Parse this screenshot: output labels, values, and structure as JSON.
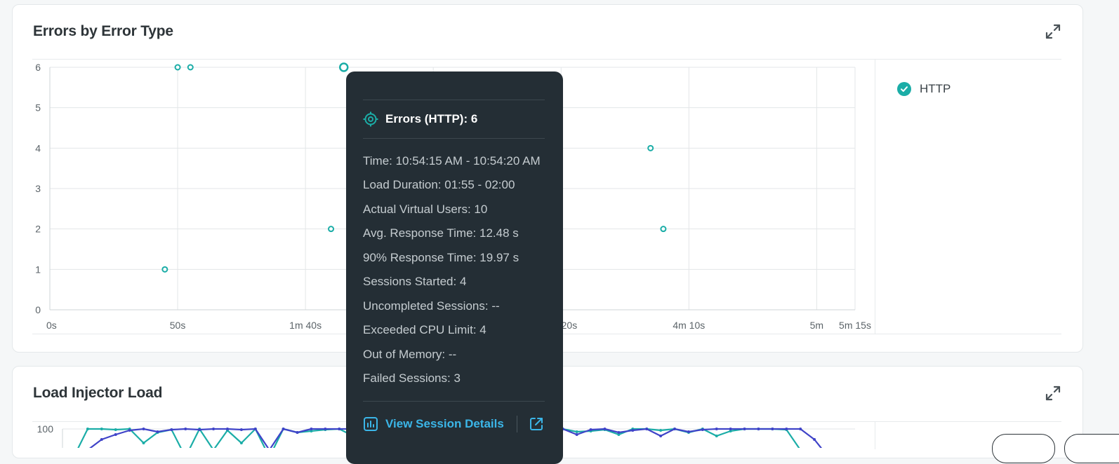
{
  "cards": {
    "errors": {
      "title": "Errors by Error Type"
    },
    "load": {
      "title": "Load Injector Load"
    }
  },
  "legend": {
    "label": "HTTP",
    "color": "#1bada7",
    "checked": true
  },
  "chart_data": [
    {
      "type": "scatter",
      "title": "Errors by Error Type",
      "xlabel": "",
      "ylabel": "",
      "x_unit": "seconds",
      "x_ticks": [
        {
          "value": 0,
          "label": "0s"
        },
        {
          "value": 50,
          "label": "50s"
        },
        {
          "value": 100,
          "label": "1m 40s"
        },
        {
          "value": 150,
          "label": ""
        },
        {
          "value": 200,
          "label": "3m 20s"
        },
        {
          "value": 250,
          "label": "4m 10s"
        },
        {
          "value": 300,
          "label": "5m"
        },
        {
          "value": 315,
          "label": "5m 15s"
        }
      ],
      "y_ticks": [
        0,
        1,
        2,
        3,
        4,
        5,
        6
      ],
      "xlim": [
        0,
        315
      ],
      "ylim": [
        0,
        6
      ],
      "grid": true,
      "legend_position": "right",
      "series": [
        {
          "name": "HTTP",
          "color": "#1bada7",
          "points": [
            {
              "x": 45,
              "y": 1
            },
            {
              "x": 50,
              "y": 6
            },
            {
              "x": 55,
              "y": 6
            },
            {
              "x": 110,
              "y": 2
            },
            {
              "x": 115,
              "y": 6,
              "highlighted": true
            },
            {
              "x": 235,
              "y": 4
            },
            {
              "x": 240,
              "y": 2
            }
          ]
        }
      ]
    },
    {
      "type": "line",
      "title": "Load Injector Load",
      "y_ticks": [
        100
      ],
      "ylim": [
        0,
        100
      ],
      "note_visible_portion_only": true,
      "series": [
        {
          "color": "#1bada7",
          "values": [
            60,
            100,
            100,
            99,
            100,
            80,
            95,
            99,
            60,
            100,
            70,
            98,
            80,
            100,
            60,
            100,
            95,
            97,
            99,
            100,
            90,
            99,
            100,
            98,
            99,
            100,
            100,
            97,
            60,
            96,
            100,
            100,
            99,
            85,
            98,
            100,
            96,
            97,
            99,
            92,
            100,
            100,
            98,
            100,
            95,
            100,
            90,
            97,
            100,
            100,
            100,
            99,
            70,
            50,
            40
          ]
        },
        {
          "color": "#3f43c8",
          "values": [
            40,
            70,
            85,
            92,
            98,
            100,
            96,
            99,
            100,
            99,
            100,
            100,
            99,
            100,
            70,
            100,
            95,
            100,
            100,
            100,
            100,
            99,
            100,
            97,
            99,
            100,
            98,
            96,
            90,
            88,
            97,
            100,
            80,
            98,
            85,
            100,
            92,
            99,
            100,
            95,
            98,
            100,
            90,
            100,
            96,
            99,
            100,
            100,
            100,
            100,
            100,
            100,
            100,
            85,
            60
          ]
        }
      ]
    }
  ],
  "tooltip": {
    "header": "Errors (HTTP): 6",
    "rows": [
      "Time: 10:54:15 AM - 10:54:20 AM",
      "Load Duration: 01:55 - 02:00",
      "Actual Virtual Users: 10",
      "Avg. Response Time: 12.48 s",
      "90% Response Time: 19.97 s",
      "Sessions Started: 4",
      "Uncompleted Sessions: --",
      "Exceeded CPU Limit: 4",
      "Out of Memory: --",
      "Failed Sessions: 3"
    ],
    "link_label": "View Session Details"
  }
}
